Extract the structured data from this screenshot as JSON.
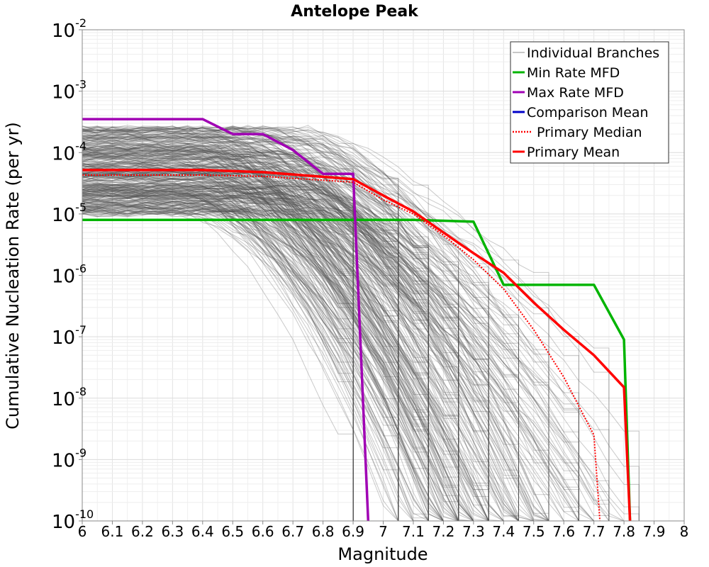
{
  "chart_data": {
    "type": "line",
    "title": "Antelope Peak",
    "xlabel": "Magnitude",
    "ylabel": "Cumulative Nucleation Rate (per yr)",
    "y_scale": "log",
    "xlim": [
      6,
      8
    ],
    "ylim": [
      1e-10,
      0.01
    ],
    "grid": true,
    "legend_position": "top-right",
    "x_ticks": [
      {
        "value": 6,
        "label": "6"
      },
      {
        "value": 6.1,
        "label": "6.1"
      },
      {
        "value": 6.2,
        "label": "6.2"
      },
      {
        "value": 6.3,
        "label": "6.3"
      },
      {
        "value": 6.4,
        "label": "6.4"
      },
      {
        "value": 6.5,
        "label": "6.5"
      },
      {
        "value": 6.6,
        "label": "6.6"
      },
      {
        "value": 6.7,
        "label": "6.7"
      },
      {
        "value": 6.8,
        "label": "6.8"
      },
      {
        "value": 6.9,
        "label": "6.9"
      },
      {
        "value": 7,
        "label": "7"
      },
      {
        "value": 7.1,
        "label": "7.1"
      },
      {
        "value": 7.2,
        "label": "7.2"
      },
      {
        "value": 7.3,
        "label": "7.3"
      },
      {
        "value": 7.4,
        "label": "7.4"
      },
      {
        "value": 7.5,
        "label": "7.5"
      },
      {
        "value": 7.6,
        "label": "7.6"
      },
      {
        "value": 7.7,
        "label": "7.7"
      },
      {
        "value": 7.8,
        "label": "7.8"
      },
      {
        "value": 7.9,
        "label": "7.9"
      },
      {
        "value": 8,
        "label": "8"
      }
    ],
    "y_ticks": [
      {
        "exponent": -10,
        "base": "10",
        "exp_label": "-10"
      },
      {
        "exponent": -9,
        "base": "10",
        "exp_label": "-9"
      },
      {
        "exponent": -8,
        "base": "10",
        "exp_label": "-8"
      },
      {
        "exponent": -7,
        "base": "10",
        "exp_label": "-7"
      },
      {
        "exponent": -6,
        "base": "10",
        "exp_label": "-6"
      },
      {
        "exponent": -5,
        "base": "10",
        "exp_label": "-5"
      },
      {
        "exponent": -4,
        "base": "10",
        "exp_label": "-4"
      },
      {
        "exponent": -3,
        "base": "10",
        "exp_label": "-3"
      },
      {
        "exponent": -2,
        "base": "10",
        "exp_label": "-2"
      }
    ],
    "series": [
      {
        "name": "Min Rate MFD",
        "color": "#00b400",
        "style": "solid",
        "x": [
          6.0,
          6.9,
          7.1,
          7.3,
          7.4,
          7.7,
          7.8,
          7.82
        ],
        "y": [
          8e-06,
          8e-06,
          8e-06,
          7.5e-06,
          7e-07,
          7e-07,
          9e-08,
          1e-10
        ]
      },
      {
        "name": "Max Rate MFD",
        "color": "#a000b4",
        "style": "solid",
        "x": [
          6.0,
          6.4,
          6.5,
          6.6,
          6.7,
          6.8,
          6.9,
          6.95
        ],
        "y": [
          0.00035,
          0.00035,
          0.0002,
          0.0002,
          0.00011,
          4.5e-05,
          4.5e-05,
          1e-10
        ]
      },
      {
        "name": "Comparison Mean",
        "color": "#0000c8",
        "style": "solid",
        "x": [],
        "y": []
      },
      {
        "name": "Primary Median",
        "color": "#ff0000",
        "style": "dotted",
        "x": [
          6.0,
          6.4,
          6.6,
          6.9,
          7.0,
          7.1,
          7.2,
          7.3,
          7.4,
          7.5,
          7.6,
          7.7,
          7.72
        ],
        "y": [
          4.3e-05,
          4.3e-05,
          4.1e-05,
          3.3e-05,
          1.7e-05,
          1e-05,
          4.5e-06,
          1.8e-06,
          6e-07,
          1.3e-07,
          2.2e-08,
          2.5e-09,
          1e-10
        ]
      },
      {
        "name": "Primary Mean",
        "color": "#ff0000",
        "style": "solid",
        "x": [
          6.0,
          6.4,
          6.6,
          6.9,
          7.0,
          7.1,
          7.2,
          7.3,
          7.4,
          7.5,
          7.6,
          7.7,
          7.8,
          7.82
        ],
        "y": [
          5.2e-05,
          5.2e-05,
          4.8e-05,
          3.7e-05,
          2e-05,
          1.1e-05,
          5e-06,
          2.3e-06,
          1.1e-06,
          3.6e-07,
          1.3e-07,
          5e-08,
          1.5e-08,
          1e-10
        ]
      }
    ],
    "individual_branches": {
      "name": "Individual Branches",
      "color": "#505050",
      "opacity": 0.3,
      "count": 380,
      "base_rate_range": [
        1e-05,
        0.00025
      ],
      "max_magnitude_choices": [
        6.9,
        7.05,
        7.15,
        7.25,
        7.35,
        7.45,
        7.55,
        7.65,
        7.75,
        7.85
      ]
    },
    "legend": [
      {
        "label": "Individual Branches",
        "color": "#909090",
        "style": "thin"
      },
      {
        "label": "Min Rate MFD",
        "color": "#00b400",
        "style": "solid"
      },
      {
        "label": "Max Rate MFD",
        "color": "#a000b4",
        "style": "solid"
      },
      {
        "label": "Comparison Mean",
        "color": "#0000c8",
        "style": "solid"
      },
      {
        "label": "Primary Median",
        "color": "#ff0000",
        "style": "dotted"
      },
      {
        "label": "Primary Mean",
        "color": "#ff0000",
        "style": "solid"
      }
    ]
  }
}
